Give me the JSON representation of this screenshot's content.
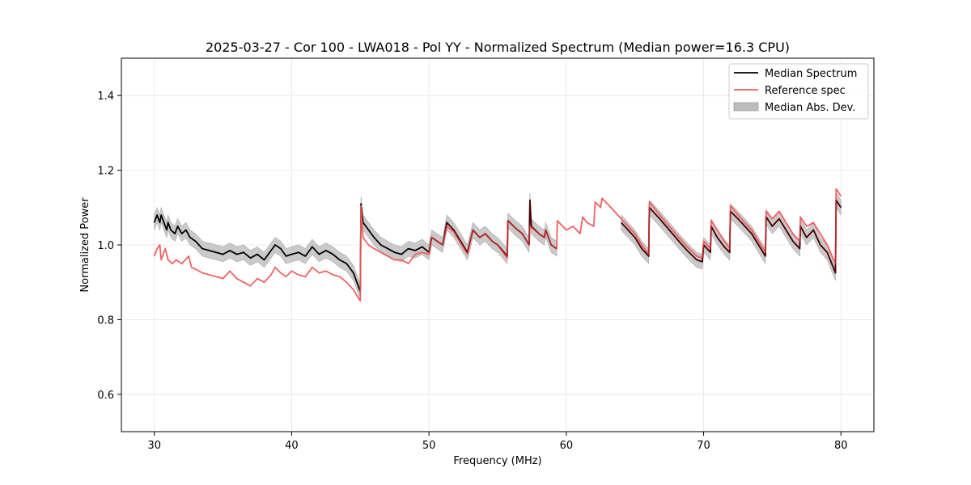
{
  "chart_data": {
    "type": "line",
    "title": "2025-03-27 - Cor 100 - LWA018 - Pol YY - Normalized Spectrum (Median power=16.3 CPU)",
    "xlabel": "Frequency (MHz)",
    "ylabel": "Normalized Power",
    "xlim": [
      27.6,
      82.4
    ],
    "ylim": [
      0.5,
      1.5
    ],
    "xticks": [
      30,
      40,
      50,
      60,
      70,
      80
    ],
    "yticks": [
      0.6,
      0.8,
      1.0,
      1.2,
      1.4
    ],
    "grid": true,
    "legend_position": "top-right",
    "colors": {
      "median": "#000000",
      "reference": "#f05a5a",
      "mad": "#bdbdbd",
      "overlap": "#8b0000"
    },
    "legend": {
      "median": "Median Spectrum",
      "reference": "Reference spec",
      "mad": "Median Abs. Dev."
    },
    "series": [
      {
        "name": "Median Spectrum",
        "segments": [
          [
            [
              30.0,
              1.06
            ],
            [
              30.2,
              1.08
            ],
            [
              30.4,
              1.06
            ],
            [
              30.5,
              1.08
            ],
            [
              30.7,
              1.06
            ],
            [
              30.9,
              1.04
            ],
            [
              31.0,
              1.06
            ],
            [
              31.2,
              1.04
            ],
            [
              31.5,
              1.03
            ],
            [
              31.7,
              1.05
            ],
            [
              32.0,
              1.03
            ],
            [
              32.3,
              1.04
            ],
            [
              32.6,
              1.02
            ],
            [
              33.0,
              1.01
            ],
            [
              33.5,
              0.99
            ],
            [
              34.0,
              0.985
            ],
            [
              34.5,
              0.98
            ],
            [
              35.0,
              0.975
            ],
            [
              35.5,
              0.985
            ],
            [
              36.0,
              0.975
            ],
            [
              36.5,
              0.98
            ],
            [
              37.0,
              0.965
            ],
            [
              37.5,
              0.975
            ],
            [
              38.0,
              0.96
            ],
            [
              38.5,
              0.985
            ],
            [
              38.8,
              1.0
            ],
            [
              39.2,
              0.99
            ],
            [
              39.6,
              0.97
            ],
            [
              40.0,
              0.975
            ],
            [
              40.5,
              0.98
            ],
            [
              41.0,
              0.97
            ],
            [
              41.5,
              0.995
            ],
            [
              42.0,
              0.975
            ],
            [
              42.5,
              0.985
            ],
            [
              43.0,
              0.975
            ],
            [
              43.5,
              0.96
            ],
            [
              44.0,
              0.95
            ],
            [
              44.5,
              0.925
            ],
            [
              44.9,
              0.885
            ],
            [
              45.0,
              0.875
            ],
            [
              45.05,
              1.11
            ],
            [
              45.2,
              1.06
            ],
            [
              45.6,
              1.04
            ],
            [
              46.0,
              1.02
            ],
            [
              46.5,
              1.0
            ],
            [
              47.0,
              0.99
            ],
            [
              47.5,
              0.98
            ],
            [
              48.0,
              0.975
            ],
            [
              48.5,
              0.99
            ],
            [
              49.0,
              0.985
            ],
            [
              49.5,
              0.995
            ],
            [
              50.0,
              0.98
            ],
            [
              50.2,
              1.02
            ],
            [
              50.6,
              1.01
            ],
            [
              51.0,
              1.0
            ],
            [
              51.3,
              1.06
            ],
            [
              51.8,
              1.04
            ],
            [
              52.3,
              1.01
            ],
            [
              52.8,
              0.98
            ],
            [
              53.2,
              1.04
            ],
            [
              53.7,
              1.02
            ],
            [
              54.1,
              1.03
            ],
            [
              54.6,
              1.01
            ],
            [
              55.0,
              1.0
            ],
            [
              55.7,
              0.97
            ],
            [
              55.75,
              1.065
            ],
            [
              56.3,
              1.045
            ],
            [
              56.8,
              1.03
            ],
            [
              57.3,
              1.0
            ],
            [
              57.35,
              1.12
            ],
            [
              57.45,
              1.05
            ],
            [
              58.0,
              1.03
            ],
            [
              58.4,
              1.02
            ],
            [
              58.5,
              1.04
            ],
            [
              58.9,
              1.0
            ],
            [
              59.3,
              0.99
            ]
          ],
          [
            [
              64.0,
              1.06
            ],
            [
              64.5,
              1.04
            ],
            [
              65.0,
              1.02
            ],
            [
              65.5,
              0.99
            ],
            [
              66.0,
              0.97
            ],
            [
              66.05,
              1.1
            ],
            [
              66.8,
              1.07
            ],
            [
              67.5,
              1.04
            ],
            [
              68.2,
              1.01
            ],
            [
              68.8,
              0.985
            ],
            [
              69.5,
              0.96
            ],
            [
              69.9,
              0.955
            ],
            [
              70.0,
              1.0
            ],
            [
              70.5,
              0.98
            ],
            [
              70.55,
              1.05
            ],
            [
              71.0,
              1.02
            ],
            [
              71.5,
              0.995
            ],
            [
              71.9,
              0.98
            ],
            [
              71.95,
              1.09
            ],
            [
              72.5,
              1.07
            ],
            [
              73.0,
              1.05
            ],
            [
              73.5,
              1.03
            ],
            [
              74.0,
              1.0
            ],
            [
              74.5,
              0.97
            ],
            [
              74.55,
              1.075
            ],
            [
              75.0,
              1.05
            ],
            [
              75.5,
              1.07
            ],
            [
              76.0,
              1.04
            ],
            [
              76.5,
              1.01
            ],
            [
              77.0,
              0.99
            ],
            [
              77.05,
              1.05
            ],
            [
              77.5,
              1.02
            ],
            [
              78.0,
              1.04
            ],
            [
              78.5,
              1.0
            ],
            [
              79.0,
              0.98
            ],
            [
              79.6,
              0.925
            ],
            [
              79.65,
              1.12
            ],
            [
              80.0,
              1.1
            ]
          ]
        ]
      },
      {
        "name": "Reference spec",
        "segments": [
          [
            [
              30.0,
              0.97
            ],
            [
              30.2,
              0.99
            ],
            [
              30.4,
              1.0
            ],
            [
              30.5,
              0.96
            ],
            [
              30.8,
              0.99
            ],
            [
              31.0,
              0.96
            ],
            [
              31.3,
              0.95
            ],
            [
              31.6,
              0.96
            ],
            [
              32.0,
              0.95
            ],
            [
              32.5,
              0.97
            ],
            [
              32.7,
              0.94
            ],
            [
              33.0,
              0.935
            ],
            [
              33.5,
              0.925
            ],
            [
              34.0,
              0.92
            ],
            [
              34.5,
              0.915
            ],
            [
              35.0,
              0.91
            ],
            [
              35.5,
              0.93
            ],
            [
              36.0,
              0.91
            ],
            [
              36.5,
              0.9
            ],
            [
              37.0,
              0.89
            ],
            [
              37.5,
              0.91
            ],
            [
              38.0,
              0.9
            ],
            [
              38.5,
              0.92
            ],
            [
              38.8,
              0.94
            ],
            [
              39.2,
              0.925
            ],
            [
              39.6,
              0.915
            ],
            [
              40.0,
              0.93
            ],
            [
              40.5,
              0.92
            ],
            [
              41.0,
              0.915
            ],
            [
              41.5,
              0.94
            ],
            [
              42.0,
              0.925
            ],
            [
              42.5,
              0.93
            ],
            [
              43.0,
              0.92
            ],
            [
              43.5,
              0.915
            ],
            [
              44.0,
              0.9
            ],
            [
              44.5,
              0.88
            ],
            [
              44.9,
              0.855
            ],
            [
              45.0,
              0.85
            ],
            [
              45.05,
              1.105
            ],
            [
              45.2,
              1.02
            ],
            [
              45.6,
              1.0
            ],
            [
              46.0,
              0.99
            ],
            [
              46.5,
              0.98
            ],
            [
              47.0,
              0.97
            ],
            [
              47.5,
              0.96
            ],
            [
              48.0,
              0.96
            ],
            [
              48.5,
              0.95
            ],
            [
              49.0,
              0.975
            ],
            [
              49.5,
              0.98
            ],
            [
              50.0,
              0.975
            ],
            [
              50.2,
              1.02
            ],
            [
              50.6,
              1.01
            ],
            [
              51.0,
              1.0
            ],
            [
              51.3,
              1.05
            ],
            [
              51.8,
              1.035
            ],
            [
              52.3,
              1.005
            ],
            [
              52.8,
              0.975
            ],
            [
              53.2,
              1.04
            ],
            [
              53.7,
              1.02
            ],
            [
              54.1,
              1.03
            ],
            [
              54.6,
              1.01
            ],
            [
              55.0,
              1.0
            ],
            [
              55.7,
              0.965
            ],
            [
              55.75,
              1.065
            ],
            [
              56.3,
              1.045
            ],
            [
              56.8,
              1.03
            ],
            [
              57.3,
              1.0
            ],
            [
              57.35,
              1.05
            ],
            [
              58.0,
              1.03
            ],
            [
              58.4,
              1.02
            ],
            [
              58.5,
              1.04
            ],
            [
              58.9,
              1.0
            ],
            [
              59.3,
              0.99
            ],
            [
              59.35,
              1.065
            ],
            [
              60.0,
              1.04
            ],
            [
              60.5,
              1.05
            ],
            [
              61.0,
              1.03
            ],
            [
              61.2,
              1.075
            ],
            [
              61.5,
              1.06
            ],
            [
              62.0,
              1.05
            ],
            [
              62.1,
              1.115
            ],
            [
              62.5,
              1.1
            ],
            [
              62.6,
              1.125
            ],
            [
              63.0,
              1.11
            ],
            [
              63.5,
              1.09
            ],
            [
              64.0,
              1.07
            ],
            [
              64.5,
              1.05
            ],
            [
              65.0,
              1.03
            ],
            [
              65.5,
              1.0
            ],
            [
              66.0,
              0.975
            ],
            [
              66.05,
              1.115
            ],
            [
              66.8,
              1.08
            ],
            [
              67.5,
              1.05
            ],
            [
              68.2,
              1.02
            ],
            [
              68.8,
              0.995
            ],
            [
              69.5,
              0.97
            ],
            [
              69.9,
              0.965
            ],
            [
              70.0,
              1.01
            ],
            [
              70.5,
              0.99
            ],
            [
              70.55,
              1.065
            ],
            [
              71.0,
              1.04
            ],
            [
              71.5,
              1.01
            ],
            [
              71.9,
              0.99
            ],
            [
              71.95,
              1.105
            ],
            [
              72.5,
              1.08
            ],
            [
              73.0,
              1.06
            ],
            [
              73.5,
              1.04
            ],
            [
              74.0,
              1.01
            ],
            [
              74.5,
              0.98
            ],
            [
              74.55,
              1.09
            ],
            [
              75.0,
              1.07
            ],
            [
              75.5,
              1.09
            ],
            [
              76.0,
              1.06
            ],
            [
              76.5,
              1.03
            ],
            [
              77.0,
              1.01
            ],
            [
              77.05,
              1.075
            ],
            [
              77.5,
              1.05
            ],
            [
              78.0,
              1.06
            ],
            [
              78.5,
              1.03
            ],
            [
              79.0,
              1.0
            ],
            [
              79.6,
              0.95
            ],
            [
              79.65,
              1.15
            ],
            [
              80.0,
              1.13
            ]
          ]
        ]
      }
    ],
    "mad_band": {
      "name": "Median Abs. Dev.",
      "half_width": 0.02
    }
  }
}
